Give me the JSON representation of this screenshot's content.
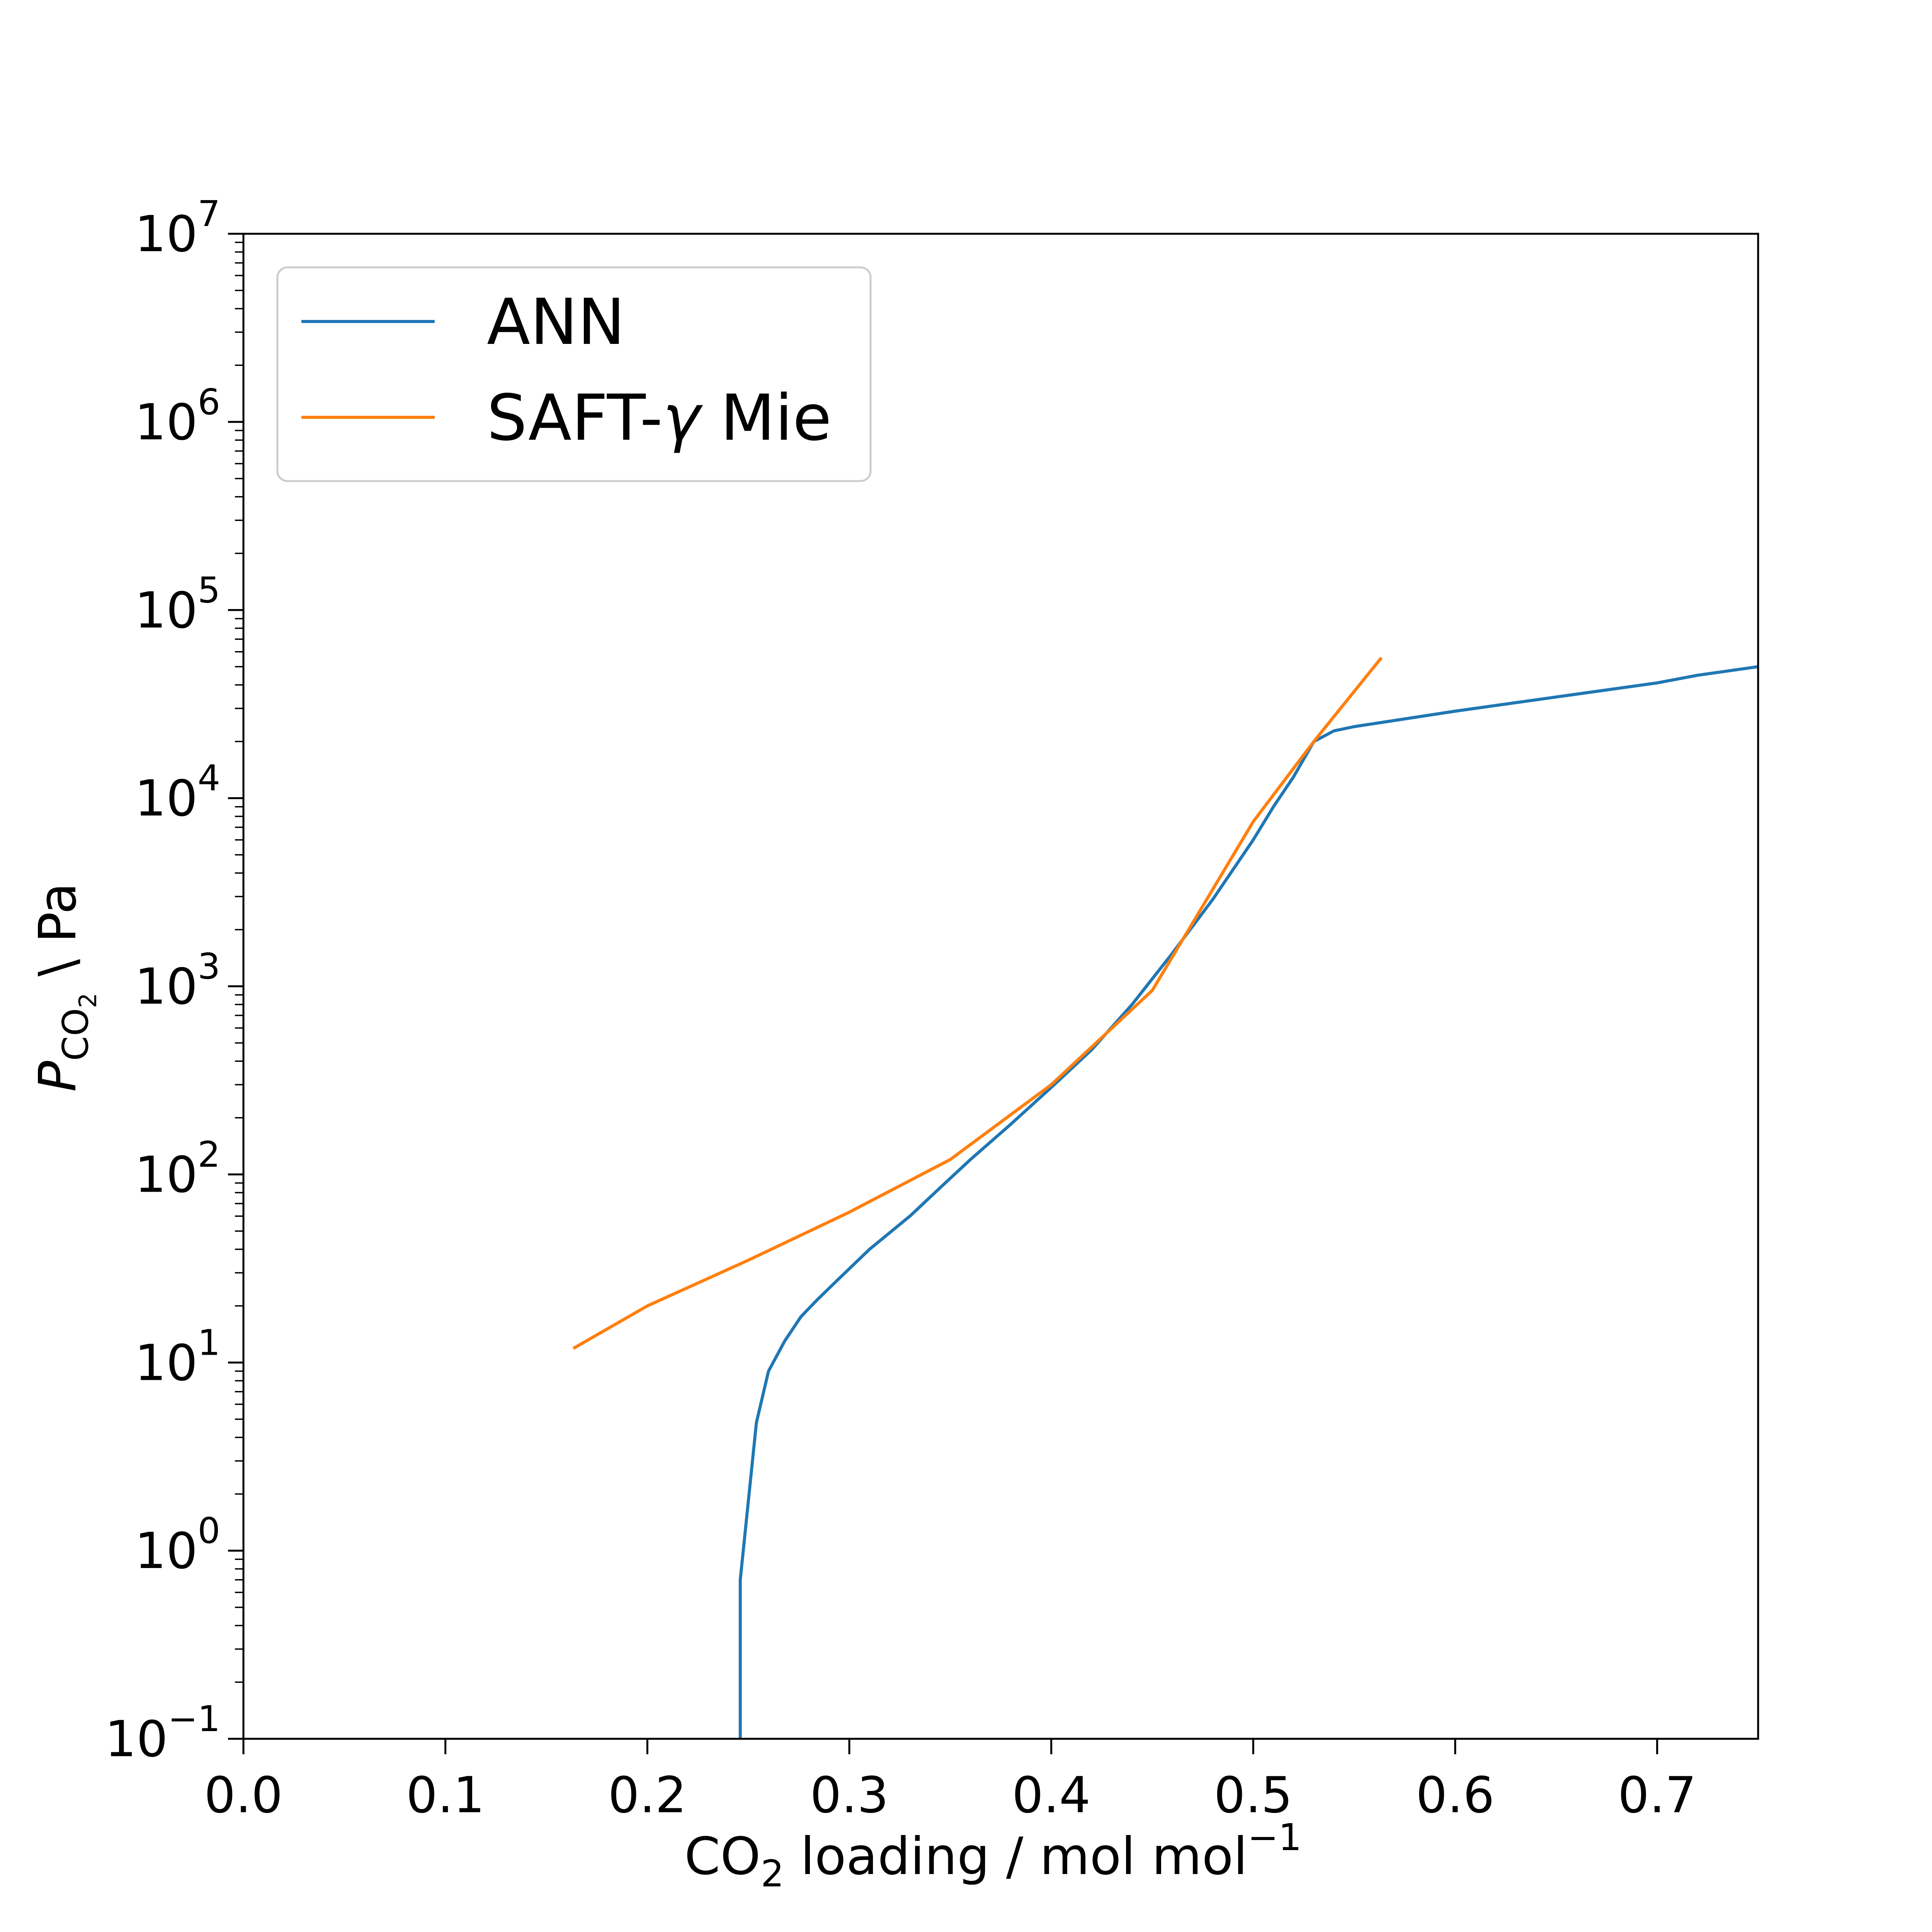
{
  "chart_data": {
    "type": "line",
    "x_axis": {
      "label_main": "CO",
      "label_sub": "2",
      "label_rest": " loading / mol mol",
      "label_sup": "−1",
      "min": 0.0,
      "max": 0.75,
      "ticks": [
        0.0,
        0.1,
        0.2,
        0.3,
        0.4,
        0.5,
        0.6,
        0.7
      ],
      "tick_labels": [
        "0.0",
        "0.1",
        "0.2",
        "0.3",
        "0.4",
        "0.5",
        "0.6",
        "0.7"
      ]
    },
    "y_axis": {
      "label_var": "P",
      "label_sub": "CO",
      "label_subsub": "2",
      "label_rest": " \\ Pa",
      "scale": "log",
      "min_exp": -1,
      "max_exp": 7,
      "tick_base": "10",
      "tick_exponents": [
        "−1",
        "0",
        "1",
        "2",
        "3",
        "4",
        "5",
        "6",
        "7"
      ]
    },
    "legend": {
      "position": "upper-left",
      "entries": [
        {
          "label": "ANN"
        },
        {
          "label_prefix": "SAFT-",
          "label_symbol": "γ",
          "label_suffix": " Mie"
        }
      ]
    },
    "grid": false,
    "series": [
      {
        "name": "ANN",
        "color": "#1f77b4",
        "x": [
          0.246,
          0.246,
          0.254,
          0.26,
          0.268,
          0.276,
          0.284,
          0.295,
          0.31,
          0.33,
          0.345,
          0.36,
          0.38,
          0.4,
          0.42,
          0.44,
          0.46,
          0.48,
          0.5,
          0.51,
          0.52,
          0.53,
          0.54,
          0.55,
          0.6,
          0.65,
          0.7,
          0.72,
          0.75
        ],
        "y": [
          0.1,
          0.7,
          4.8,
          9,
          13,
          17.5,
          21.5,
          28,
          40,
          60,
          85,
          120,
          185,
          290,
          460,
          800,
          1500,
          2900,
          6000,
          9000,
          13000,
          20000,
          22800,
          24000,
          29000,
          34500,
          41000,
          45000,
          50000
        ]
      },
      {
        "name": "SAFT-γ Mie",
        "color": "#ff7f0e",
        "x": [
          0.164,
          0.2,
          0.25,
          0.3,
          0.35,
          0.4,
          0.45,
          0.5,
          0.53,
          0.563
        ],
        "y": [
          12,
          20,
          35,
          63,
          120,
          300,
          950,
          7500,
          20000,
          55000
        ]
      }
    ]
  }
}
